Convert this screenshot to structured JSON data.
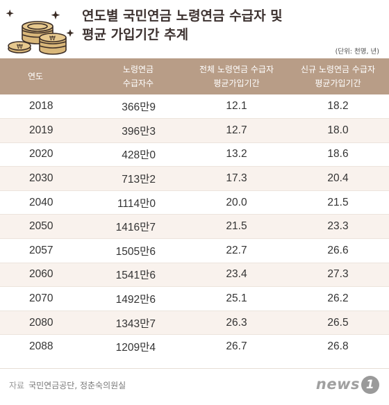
{
  "header": {
    "title_line1": "연도별 국민연금 노령연금 수급자 및",
    "title_line2": "평균 가입기간 추계",
    "unit": "(단위: 천명, 년)"
  },
  "table": {
    "col_year": "연도",
    "col_recipients_1": "노령연금",
    "col_recipients_2": "수급자수",
    "col_total_1": "전체 노령연금 수급자",
    "col_total_2": "평균가입기간",
    "col_new_1": "신규 노령연금 수급자",
    "col_new_2": "평균가입기간",
    "rows": [
      {
        "year": "2018",
        "recipients": "366만9",
        "total": "12.1",
        "new": "18.2"
      },
      {
        "year": "2019",
        "recipients": "396만3",
        "total": "12.7",
        "new": "18.0"
      },
      {
        "year": "2020",
        "recipients": "428만0",
        "total": "13.2",
        "new": "18.6"
      },
      {
        "year": "2030",
        "recipients": "713만2",
        "total": "17.3",
        "new": "20.4"
      },
      {
        "year": "2040",
        "recipients": "1114만0",
        "total": "20.0",
        "new": "21.5"
      },
      {
        "year": "2050",
        "recipients": "1416만7",
        "total": "21.5",
        "new": "23.3"
      },
      {
        "year": "2057",
        "recipients": "1505만6",
        "total": "22.7",
        "new": "26.6"
      },
      {
        "year": "2060",
        "recipients": "1541만6",
        "total": "23.4",
        "new": "27.3"
      },
      {
        "year": "2070",
        "recipients": "1492만6",
        "total": "25.1",
        "new": "26.2"
      },
      {
        "year": "2080",
        "recipients": "1343만7",
        "total": "26.3",
        "new": "26.5"
      },
      {
        "year": "2088",
        "recipients": "1209만4",
        "total": "26.7",
        "new": "26.8"
      }
    ]
  },
  "footer": {
    "source_label": "자료",
    "source_text": "국민연금공단, 정춘숙의원실",
    "logo_text": "news",
    "logo_badge": "1"
  },
  "chart_data": {
    "type": "table",
    "title": "연도별 국민연금 노령연금 수급자 및 평균 가입기간 추계",
    "unit": "(단위: 천명, 년)",
    "columns": [
      "연도",
      "노령연금 수급자수",
      "전체 노령연금 수급자 평균가입기간",
      "신규 노령연금 수급자 평균가입기간"
    ],
    "categories": [
      "2018",
      "2019",
      "2020",
      "2030",
      "2040",
      "2050",
      "2057",
      "2060",
      "2070",
      "2080",
      "2088"
    ],
    "series": [
      {
        "values": [
          "366만9",
          "396만3",
          "428만0",
          "713만2",
          "1114만0",
          "1416만7",
          "1505만6",
          "1541만6",
          "1492만6",
          "1343만7",
          "1209만4"
        ]
      },
      {
        "values": [
          12.1,
          12.7,
          13.2,
          17.3,
          20.0,
          21.5,
          22.7,
          23.4,
          25.1,
          26.3,
          26.7
        ]
      },
      {
        "values": [
          18.2,
          18.0,
          18.6,
          20.4,
          21.5,
          23.3,
          26.6,
          27.3,
          26.2,
          26.5,
          26.8
        ]
      }
    ]
  },
  "colors": {
    "header_bg": "#b89d87",
    "alt_row": "#f9f2ed",
    "coin": "#d9b77a",
    "coin_dark": "#7a5a3a"
  }
}
